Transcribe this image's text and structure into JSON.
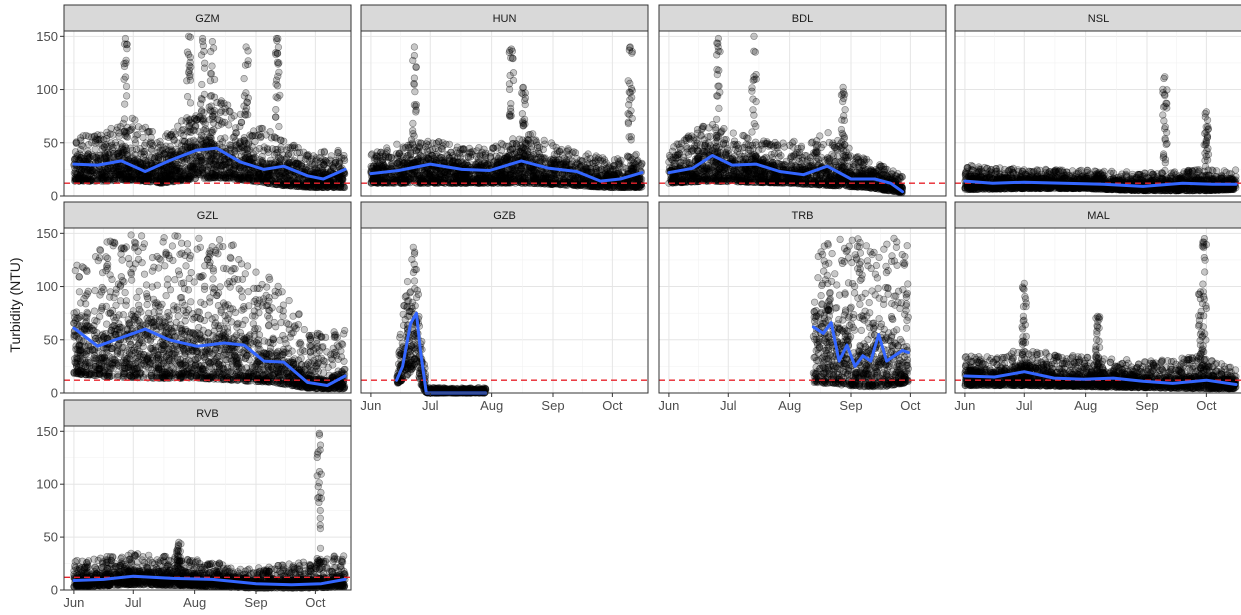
{
  "chart_data": {
    "type": "scatter",
    "ylabel": "Turbidity (NTU)",
    "xlabel": "",
    "ylim": [
      0,
      155
    ],
    "yticks": [
      0,
      50,
      100,
      150
    ],
    "xlim_day": [
      -5,
      140
    ],
    "xticks": [
      {
        "label": "Jun",
        "day": 0
      },
      {
        "label": "Jul",
        "day": 30
      },
      {
        "label": "Aug",
        "day": 61
      },
      {
        "label": "Sep",
        "day": 92
      },
      {
        "label": "Oct",
        "day": 122
      }
    ],
    "threshold": 12,
    "grid": true,
    "smoothing": "loess",
    "panels": [
      {
        "site": "GZM",
        "row": 0,
        "col": 0,
        "x_range": [
          0,
          137
        ],
        "smooth": {
          "x": [
            0,
            12,
            24,
            36,
            48,
            62,
            72,
            84,
            96,
            106,
            118,
            126,
            137
          ],
          "y": [
            30,
            29,
            33,
            23,
            33,
            43,
            45,
            32,
            25,
            28,
            19,
            16,
            25
          ]
        },
        "band": {
          "x": [
            0,
            15,
            30,
            45,
            60,
            75,
            90,
            105,
            120,
            137
          ],
          "lo": [
            14,
            14,
            15,
            12,
            16,
            17,
            14,
            10,
            8,
            8
          ],
          "hi": [
            55,
            60,
            75,
            55,
            80,
            90,
            70,
            55,
            40,
            45
          ]
        },
        "peaks": [
          {
            "x": 26,
            "h": 148
          },
          {
            "x": 58,
            "h": 150
          },
          {
            "x": 65,
            "h": 148
          },
          {
            "x": 70,
            "h": 145
          },
          {
            "x": 87,
            "h": 140
          },
          {
            "x": 103,
            "h": 148
          }
        ]
      },
      {
        "site": "HUN",
        "row": 0,
        "col": 1,
        "x_range": [
          0,
          137
        ],
        "smooth": {
          "x": [
            0,
            14,
            30,
            46,
            60,
            76,
            90,
            104,
            116,
            126,
            137
          ],
          "y": [
            21,
            24,
            30,
            25,
            24,
            33,
            26,
            23,
            14,
            16,
            22
          ]
        },
        "band": {
          "x": [
            0,
            20,
            40,
            60,
            80,
            100,
            120,
            137
          ],
          "lo": [
            12,
            12,
            12,
            12,
            12,
            10,
            8,
            8
          ],
          "hi": [
            40,
            55,
            50,
            45,
            60,
            45,
            35,
            40
          ]
        },
        "peaks": [
          {
            "x": 22,
            "h": 140
          },
          {
            "x": 71,
            "h": 138
          },
          {
            "x": 77,
            "h": 102
          },
          {
            "x": 131,
            "h": 140
          }
        ]
      },
      {
        "site": "BDL",
        "row": 0,
        "col": 2,
        "x_range": [
          0,
          118
        ],
        "smooth": {
          "x": [
            0,
            12,
            22,
            32,
            44,
            56,
            68,
            80,
            92,
            104,
            112,
            118
          ],
          "y": [
            22,
            26,
            38,
            29,
            30,
            23,
            20,
            28,
            16,
            16,
            12,
            4
          ]
        },
        "band": {
          "x": [
            0,
            20,
            40,
            60,
            80,
            100,
            118
          ],
          "lo": [
            12,
            14,
            13,
            12,
            10,
            8,
            3
          ],
          "hi": [
            45,
            70,
            55,
            50,
            60,
            35,
            20
          ]
        },
        "peaks": [
          {
            "x": 25,
            "h": 148
          },
          {
            "x": 43,
            "h": 150
          },
          {
            "x": 88,
            "h": 102
          }
        ]
      },
      {
        "site": "NSL",
        "row": 0,
        "col": 3,
        "x_range": [
          0,
          137
        ],
        "smooth": {
          "x": [
            0,
            14,
            30,
            50,
            70,
            90,
            110,
            125,
            137
          ],
          "y": [
            14,
            12,
            13,
            12,
            11,
            9,
            12,
            11,
            11
          ]
        },
        "band": {
          "x": [
            0,
            30,
            60,
            90,
            120,
            137
          ],
          "lo": [
            6,
            7,
            7,
            5,
            5,
            6
          ],
          "hi": [
            30,
            25,
            25,
            22,
            25,
            25
          ]
        },
        "peaks": [
          {
            "x": 101,
            "h": 112
          },
          {
            "x": 122,
            "h": 79
          }
        ]
      },
      {
        "site": "GZL",
        "row": 1,
        "col": 0,
        "x_range": [
          0,
          137
        ],
        "smooth": {
          "x": [
            0,
            12,
            24,
            36,
            48,
            62,
            76,
            86,
            96,
            106,
            118,
            128,
            137
          ],
          "y": [
            61,
            44,
            52,
            60,
            50,
            44,
            47,
            45,
            30,
            29,
            10,
            7,
            16
          ]
        },
        "band": {
          "x": [
            0,
            20,
            40,
            60,
            80,
            100,
            120,
            137
          ],
          "lo": [
            18,
            15,
            14,
            14,
            12,
            10,
            4,
            4
          ],
          "hi": [
            120,
            148,
            150,
            148,
            145,
            110,
            60,
            60
          ]
        },
        "peaks": []
      },
      {
        "site": "GZB",
        "row": 1,
        "col": 1,
        "x_range": [
          13,
          58
        ],
        "smooth": {
          "x": [
            13,
            16,
            20,
            23,
            25,
            28,
            45,
            58
          ],
          "y": [
            12,
            25,
            65,
            75,
            40,
            0,
            0,
            0
          ]
        },
        "band": {
          "x": [
            13,
            17,
            20,
            23,
            25,
            28
          ],
          "lo": [
            8,
            14,
            20,
            30,
            8,
            0
          ],
          "hi": [
            30,
            90,
            135,
            145,
            80,
            5
          ]
        },
        "peaks": []
      },
      {
        "site": "TRB",
        "row": 1,
        "col": 2,
        "x_range": [
          73,
          121
        ],
        "smooth": {
          "x": [
            73,
            78,
            82,
            86,
            90,
            94,
            98,
            102,
            106,
            110,
            114,
            118,
            121
          ],
          "y": [
            62,
            56,
            66,
            30,
            45,
            25,
            35,
            30,
            55,
            30,
            35,
            40,
            38
          ]
        },
        "band": {
          "x": [
            73,
            85,
            97,
            109,
            121
          ],
          "lo": [
            10,
            8,
            6,
            6,
            10
          ],
          "hi": [
            148,
            150,
            148,
            148,
            148
          ]
        },
        "peaks": []
      },
      {
        "site": "MAL",
        "row": 1,
        "col": 3,
        "x_range": [
          0,
          137
        ],
        "smooth": {
          "x": [
            0,
            15,
            30,
            45,
            60,
            75,
            90,
            105,
            122,
            137
          ],
          "y": [
            16,
            15,
            20,
            14,
            13,
            14,
            11,
            9,
            12,
            8
          ]
        },
        "band": {
          "x": [
            0,
            30,
            60,
            90,
            120,
            137
          ],
          "lo": [
            7,
            7,
            6,
            5,
            4,
            4
          ],
          "hi": [
            35,
            40,
            35,
            30,
            35,
            22
          ]
        },
        "peaks": [
          {
            "x": 30,
            "h": 103
          },
          {
            "x": 67,
            "h": 72
          },
          {
            "x": 121,
            "h": 145
          },
          {
            "x": 119,
            "h": 95
          }
        ]
      },
      {
        "site": "RVB",
        "row": 2,
        "col": 0,
        "x_range": [
          0,
          137
        ],
        "smooth": {
          "x": [
            0,
            15,
            30,
            50,
            70,
            92,
            110,
            125,
            137
          ],
          "y": [
            9,
            10,
            13,
            11,
            10,
            6,
            5,
            6,
            10
          ]
        },
        "band": {
          "x": [
            0,
            30,
            60,
            90,
            120,
            137
          ],
          "lo": [
            3,
            5,
            4,
            2,
            2,
            3
          ],
          "hi": [
            28,
            35,
            30,
            20,
            28,
            35
          ]
        },
        "peaks": [
          {
            "x": 124,
            "h": 148
          },
          {
            "x": 53,
            "h": 45
          }
        ]
      }
    ]
  }
}
